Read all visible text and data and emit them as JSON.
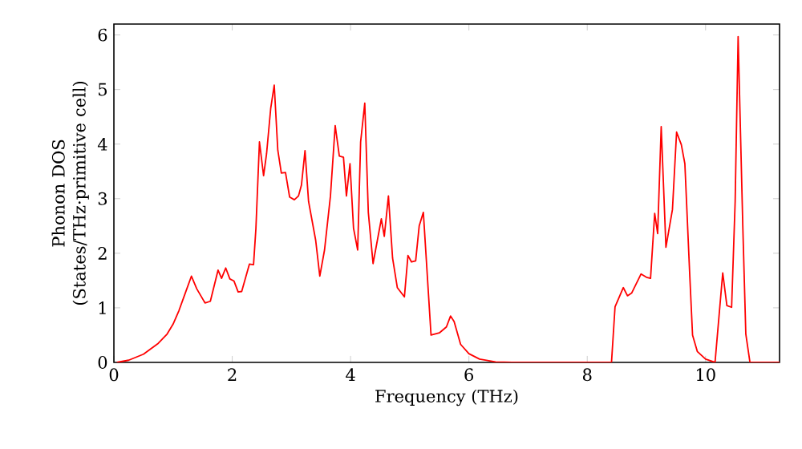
{
  "chart_data": {
    "type": "line",
    "xlabel": "Frequency (THz)",
    "ylabel": "Phonon DOS (States/THz·primitive cell)",
    "xlim": [
      0,
      11.25
    ],
    "ylim": [
      0,
      6.2
    ],
    "xticks": [
      0,
      2,
      4,
      6,
      8,
      10
    ],
    "yticks": [
      0,
      1,
      2,
      3,
      4,
      5,
      6
    ],
    "series": [
      {
        "color": "#ff0000",
        "x": [
          0.05,
          0.25,
          0.5,
          0.75,
          0.9,
          1.0,
          1.1,
          1.2,
          1.31,
          1.4,
          1.54,
          1.63,
          1.76,
          1.82,
          1.89,
          1.96,
          2.03,
          2.1,
          2.16,
          2.29,
          2.36,
          2.4,
          2.46,
          2.53,
          2.58,
          2.65,
          2.71,
          2.77,
          2.83,
          2.9,
          2.97,
          3.05,
          3.12,
          3.17,
          3.23,
          3.29,
          3.41,
          3.48,
          3.56,
          3.66,
          3.74,
          3.81,
          3.88,
          3.93,
          3.99,
          4.05,
          4.12,
          4.17,
          4.24,
          4.3,
          4.38,
          4.52,
          4.57,
          4.64,
          4.71,
          4.79,
          4.91,
          4.97,
          5.03,
          5.1,
          5.16,
          5.23,
          5.36,
          5.5,
          5.62,
          5.69,
          5.75,
          5.86,
          6.0,
          6.18,
          6.45,
          6.73,
          8.41,
          8.47,
          8.61,
          8.68,
          8.75,
          8.91,
          9.0,
          9.07,
          9.14,
          9.19,
          9.25,
          9.33,
          9.44,
          9.51,
          9.59,
          9.65,
          9.73,
          9.78,
          9.86,
          10.0,
          10.16,
          10.29,
          10.36,
          10.44,
          10.5,
          10.55,
          10.63,
          10.68,
          10.75,
          11.25
        ],
        "values": [
          0,
          0.04,
          0.15,
          0.35,
          0.52,
          0.7,
          0.95,
          1.25,
          1.58,
          1.35,
          1.09,
          1.12,
          1.69,
          1.54,
          1.73,
          1.53,
          1.49,
          1.29,
          1.3,
          1.8,
          1.79,
          2.45,
          4.04,
          3.42,
          3.82,
          4.65,
          5.08,
          3.89,
          3.47,
          3.48,
          3.03,
          2.98,
          3.05,
          3.25,
          3.88,
          2.95,
          2.24,
          1.58,
          2.06,
          3.05,
          4.34,
          3.78,
          3.76,
          3.05,
          3.64,
          2.46,
          2.06,
          4.04,
          4.75,
          2.75,
          1.81,
          2.63,
          2.31,
          3.05,
          1.91,
          1.37,
          1.2,
          1.96,
          1.84,
          1.86,
          2.5,
          2.75,
          0.5,
          0.54,
          0.65,
          0.85,
          0.75,
          0.33,
          0.16,
          0.06,
          0.01,
          0,
          0,
          1.02,
          1.37,
          1.22,
          1.27,
          1.62,
          1.56,
          1.54,
          2.73,
          2.36,
          4.32,
          2.11,
          2.8,
          4.22,
          3.99,
          3.64,
          1.66,
          0.5,
          0.2,
          0.06,
          0,
          1.64,
          1.04,
          1.01,
          2.95,
          5.97,
          2.46,
          0.52,
          0,
          0
        ]
      }
    ]
  }
}
